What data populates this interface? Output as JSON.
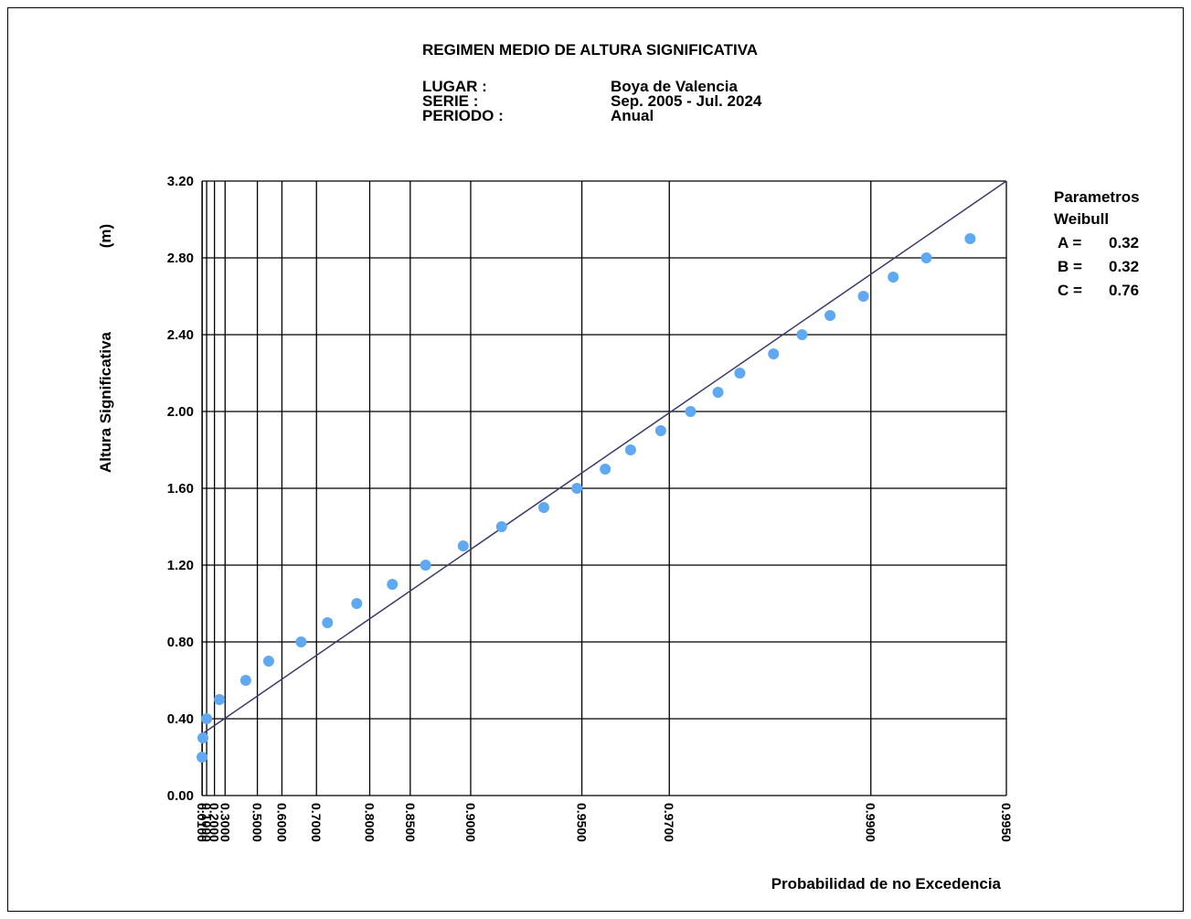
{
  "header": {
    "title": "REGIMEN MEDIO DE ALTURA SIGNIFICATIVA",
    "lugar_label": "LUGAR :",
    "lugar_value": "Boya de Valencia",
    "serie_label": "SERIE :",
    "serie_value": "Sep. 2005 - Jul. 2024",
    "periodo_label": "PERIODO :",
    "periodo_value": "Anual"
  },
  "params": {
    "title_line1": "Parametros",
    "title_line2": "Weibull",
    "a_label": "A =",
    "a_value": "0.32",
    "b_label": "B =",
    "b_value": "0.32",
    "c_label": "C =",
    "c_value": "0.76"
  },
  "chart_data": {
    "type": "scatter",
    "title": "REGIMEN MEDIO DE ALTURA SIGNIFICATIVA",
    "xlabel": "Probabilidad de no Excedencia",
    "ylabel": "Altura Significativa",
    "ylabel_unit": "(m)",
    "x_scale": "weibull",
    "weibull": {
      "A": 0.32,
      "B": 0.32,
      "C": 0.76
    },
    "xlim": [
      0.0,
      0.995
    ],
    "ylim": [
      0.0,
      3.2
    ],
    "x_ticks": [
      0.01,
      0.1,
      0.2,
      0.3,
      0.5,
      0.6,
      0.7,
      0.8,
      0.85,
      0.9,
      0.95,
      0.97,
      0.99,
      0.995
    ],
    "x_tick_labels": [
      "0.0100",
      "0.1000",
      "0.2000",
      "0.3000",
      "0.5000",
      "0.6000",
      "0.7000",
      "0.8000",
      "0.8500",
      "0.9000",
      "0.9500",
      "0.9700",
      "0.9900",
      "0.9950"
    ],
    "y_ticks": [
      0.0,
      0.4,
      0.8,
      1.2,
      1.6,
      2.0,
      2.4,
      2.8,
      3.2
    ],
    "y_tick_labels": [
      "0.00",
      "0.40",
      "0.80",
      "1.20",
      "1.60",
      "2.00",
      "2.40",
      "2.80",
      "3.20"
    ],
    "grid": true,
    "series": [
      {
        "color": "#5fa8f2",
        "x": [
          0.0015,
          0.03,
          0.1,
          0.25,
          0.44,
          0.55,
          0.66,
          0.725,
          0.78,
          0.83,
          0.865,
          0.895,
          0.918,
          0.937,
          0.9485,
          0.9565,
          0.9625,
          0.9685,
          0.9734,
          0.9772,
          0.9798,
          0.9832,
          0.9856,
          0.9876,
          0.9896,
          0.9911,
          0.9925,
          0.994
        ],
        "y": [
          0.2,
          0.3,
          0.4,
          0.5,
          0.6,
          0.7,
          0.8,
          0.9,
          1.0,
          1.1,
          1.2,
          1.3,
          1.4,
          1.5,
          1.6,
          1.7,
          1.8,
          1.9,
          2.0,
          2.1,
          2.2,
          2.3,
          2.4,
          2.5,
          2.6,
          2.7,
          2.8,
          2.9
        ]
      }
    ],
    "fit_line": {
      "color": "#3a3a6e",
      "x": [
        0.0,
        0.995
      ],
      "y": [
        0.32,
        3.2
      ]
    }
  }
}
